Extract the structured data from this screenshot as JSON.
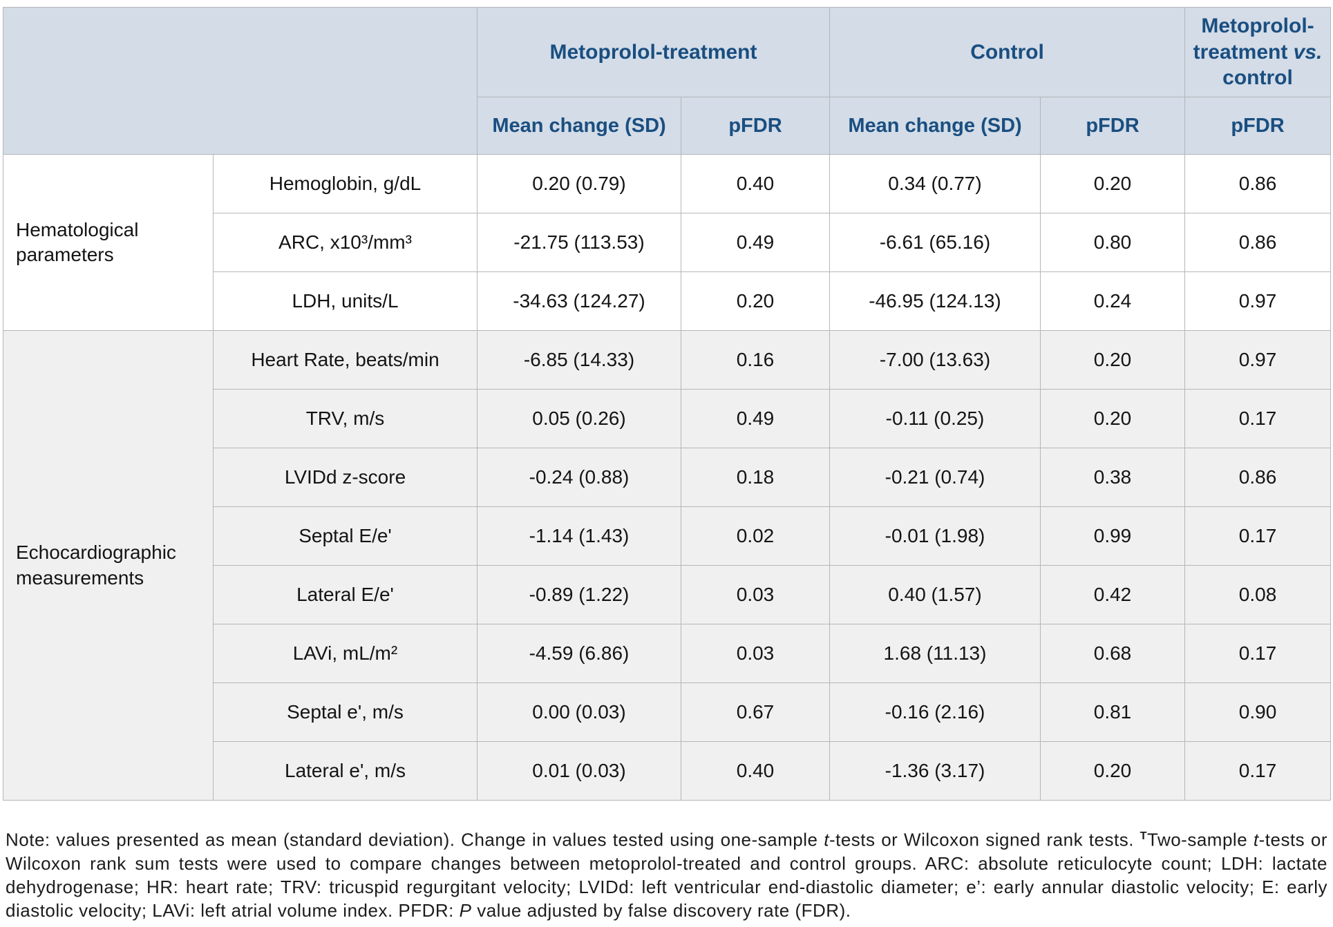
{
  "header": {
    "treatment_group": "Metoprolol-treatment",
    "control_group": "Control",
    "vs_group_segments": [
      "Metoprolol-treatment ",
      "vs.",
      " control"
    ],
    "sub_headers": [
      "Mean change (SD)",
      "pFDR",
      "Mean change (SD)",
      "pFDR",
      "pFDR"
    ]
  },
  "table": {
    "row_groups": [
      {
        "label": "Hematological parameters",
        "rows": [
          {
            "param": "Hemoglobin, g/dL",
            "cells": [
              "0.20 (0.79)",
              "0.40",
              "0.34 (0.77)",
              "0.20",
              "0.86"
            ]
          },
          {
            "param": "ARC, x10³/mm³",
            "cells": [
              "-21.75 (113.53)",
              "0.49",
              "-6.61 (65.16)",
              "0.80",
              "0.86"
            ]
          },
          {
            "param": "LDH, units/L",
            "cells": [
              "-34.63 (124.27)",
              "0.20",
              "-46.95 (124.13)",
              "0.24",
              "0.97"
            ]
          }
        ]
      },
      {
        "label": "Echocardiographic measurements",
        "rows": [
          {
            "param": "Heart Rate, beats/min",
            "cells": [
              "-6.85 (14.33)",
              "0.16",
              "-7.00 (13.63)",
              "0.20",
              "0.97"
            ]
          },
          {
            "param": "TRV, m/s",
            "cells": [
              "0.05 (0.26)",
              "0.49",
              "-0.11 (0.25)",
              "0.20",
              "0.17"
            ]
          },
          {
            "param": "LVIDd z-score",
            "cells": [
              "-0.24 (0.88)",
              "0.18",
              "-0.21 (0.74)",
              "0.38",
              "0.86"
            ]
          },
          {
            "param": "Septal E/e'",
            "cells": [
              "-1.14 (1.43)",
              "0.02",
              "-0.01 (1.98)",
              "0.99",
              "0.17"
            ]
          },
          {
            "param": "Lateral E/e'",
            "cells": [
              "-0.89 (1.22)",
              "0.03",
              "0.40 (1.57)",
              "0.42",
              "0.08"
            ]
          },
          {
            "param": "LAVi, mL/m²",
            "cells": [
              "-4.59 (6.86)",
              "0.03",
              "1.68 (11.13)",
              "0.68",
              "0.17"
            ]
          },
          {
            "param": "Septal e', m/s",
            "cells": [
              "0.00 (0.03)",
              "0.67",
              "-0.16 (2.16)",
              "0.81",
              "0.90"
            ]
          },
          {
            "param": "Lateral e', m/s",
            "cells": [
              "0.01 (0.03)",
              "0.40",
              "-1.36 (3.17)",
              "0.20",
              "0.17"
            ]
          }
        ]
      }
    ]
  },
  "note": {
    "segments": [
      {
        "text": "Note: values presented as mean (standard deviation). Change in values tested using one-sample "
      },
      {
        "text": "t"
      },
      {
        "text": "-tests or Wilcoxon signed rank tests. "
      },
      {
        "text": "T"
      },
      {
        "text": "Two-sample "
      },
      {
        "text": "t"
      },
      {
        "text": "-tests or Wilcoxon rank sum tests were used to compare changes between metoprolol-treated and control groups. ARC: absolute reticulocyte count; LDH: lactate dehydrogenase; HR: heart rate; TRV: tricuspid regurgitant velocity; LVIDd: left ventricular end-diastolic diameter; e’: early annular diastolic velocity; E: early diastolic velocity; LAVi: left atrial volume index. PFDR: "
      },
      {
        "text": "P"
      },
      {
        "text": " value adjusted by false discovery rate (FDR)."
      }
    ]
  },
  "colors": {
    "header_bg": "#d3dce7",
    "header_text": "#1a4e80",
    "hema_row_bg": "#ffffff",
    "echo_row_bg": "#f0f0f0",
    "border": "#b3b6ba"
  }
}
